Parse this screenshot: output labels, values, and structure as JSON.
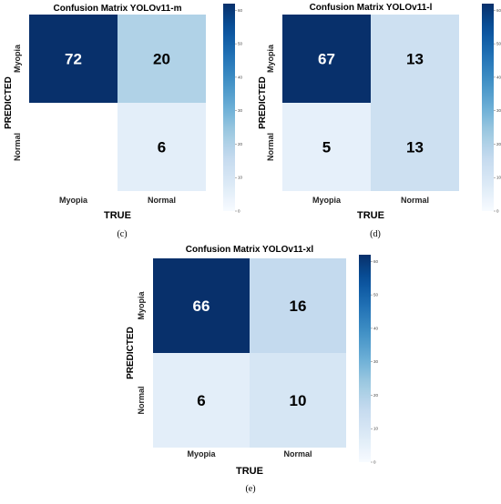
{
  "chart_data": [
    {
      "type": "heatmap",
      "panel": "(c)",
      "title": "Confusion Matrix YOLOv11-m",
      "xlabel": "TRUE",
      "ylabel": "PREDICTED",
      "x_categories": [
        "Myopia",
        "Normal"
      ],
      "y_categories": [
        "Myopia",
        "Normal"
      ],
      "values": [
        [
          72,
          20
        ],
        [
          0,
          6
        ]
      ],
      "cell_labels": [
        [
          "72",
          "20"
        ],
        [
          "",
          "6"
        ]
      ],
      "colorbar": {
        "ticks": [
          0,
          10,
          20,
          30,
          40,
          50,
          60
        ],
        "vmin": 0,
        "vmax": 62
      }
    },
    {
      "type": "heatmap",
      "panel": "(d)",
      "title": "Confusion Matrix YOLOv11-l",
      "xlabel": "TRUE",
      "ylabel": "PREDICTED",
      "x_categories": [
        "Myopia",
        "Normal"
      ],
      "y_categories": [
        "Myopia",
        "Normal"
      ],
      "values": [
        [
          67,
          13
        ],
        [
          5,
          13
        ]
      ],
      "cell_labels": [
        [
          "67",
          "13"
        ],
        [
          "5",
          "13"
        ]
      ],
      "colorbar": {
        "ticks": [
          0,
          10,
          20,
          30,
          40,
          50,
          60
        ],
        "vmin": 0,
        "vmax": 62
      }
    },
    {
      "type": "heatmap",
      "panel": "(e)",
      "title": "Confusion Matrix YOLOv11-xl",
      "xlabel": "TRUE",
      "ylabel": "PREDICTED",
      "x_categories": [
        "Myopia",
        "Normal"
      ],
      "y_categories": [
        "Myopia",
        "Normal"
      ],
      "values": [
        [
          66,
          16
        ],
        [
          6,
          10
        ]
      ],
      "cell_labels": [
        [
          "66",
          "16"
        ],
        [
          "6",
          "10"
        ]
      ],
      "colorbar": {
        "ticks": [
          0,
          10,
          20,
          30,
          40,
          50,
          60
        ],
        "vmin": 0,
        "vmax": 62
      }
    }
  ],
  "colors": {
    "low": "#f7fbff",
    "mid": "#1e9ac7",
    "high": "#08306b"
  }
}
